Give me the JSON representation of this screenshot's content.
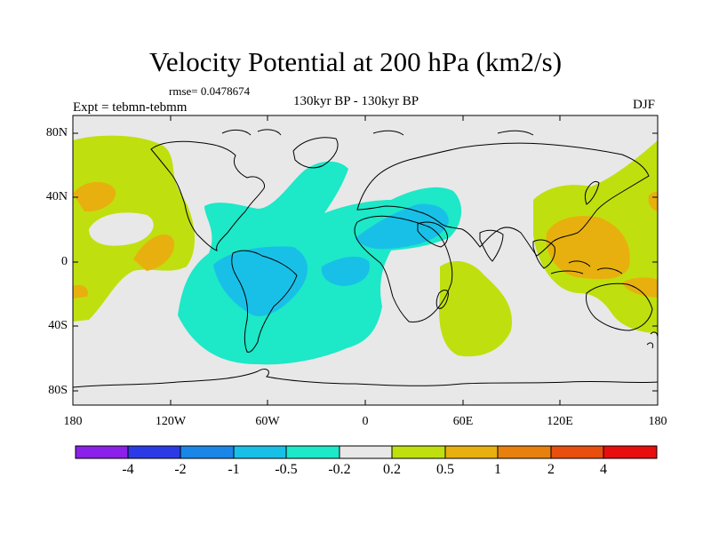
{
  "title": "Velocity Potential at 200 hPa (km2/s)",
  "rmse": "rmse= 0.0478674",
  "experiment": "Expt = tebmn-tebmm",
  "period": "130kyr BP - 130kyr BP",
  "season": "DJF",
  "map": {
    "lat_labels": [
      "80N",
      "40N",
      "0",
      "40S",
      "80S"
    ],
    "lon_labels": [
      "180",
      "120W",
      "60W",
      "0",
      "60E",
      "120E",
      "180"
    ]
  },
  "colorbar": {
    "labels": [
      "-4",
      "-2",
      "-1",
      "-0.5",
      "-0.2",
      "0.2",
      "0.5",
      "1",
      "2",
      "4"
    ],
    "colors": [
      "#8b20e8",
      "#2c3ae6",
      "#1a86e8",
      "#18c0e8",
      "#1de8c8",
      "#e8e8e8",
      "#bfe00e",
      "#e8b00e",
      "#e8800e",
      "#e84e0e",
      "#e80e0e"
    ]
  },
  "regions": [
    {
      "name": "atlantic-negative",
      "level": "-0.5 to -0.2"
    },
    {
      "name": "south-america-negative",
      "level": "-1 to -0.5"
    },
    {
      "name": "middle-east-negative",
      "level": "-1 to -0.5"
    },
    {
      "name": "north-pacific-positive",
      "level": "0.2 to 0.5"
    },
    {
      "name": "west-pacific-positive",
      "level": "0.5 to 1"
    },
    {
      "name": "indian-ocean-positive",
      "level": "0.2 to 0.5"
    }
  ]
}
